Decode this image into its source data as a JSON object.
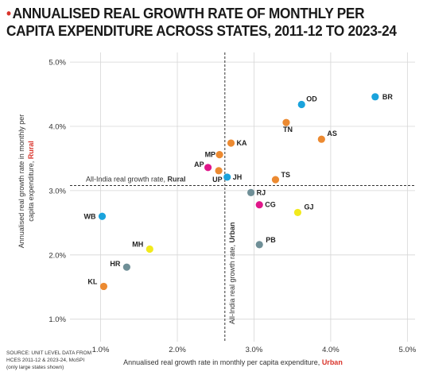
{
  "header": {
    "bullet": "•",
    "title_line1": "ANNUALISED REAL GROWTH RATE OF MONTHLY PER",
    "title_line2": "CAPITA EXPENDITURE ACROSS STATES, 2011-12 TO 2023-24"
  },
  "source": {
    "line1": "SOURCE: UNIT LEVEL DATA FROM",
    "line2": "HCES 2011-12 & 2023-24, MoSPI",
    "line3": "(only large states shown)"
  },
  "chart_data": {
    "type": "scatter",
    "title": "ANNUALISED REAL GROWTH RATE OF MONTHLY PER CAPITA EXPENDITURE ACROSS STATES, 2011-12 TO 2023-24",
    "xlabel": "Annualised real  growth rate in monthly per capita expenditure, Urban",
    "xlabel_main": "Annualised real  growth rate in monthly per capita expenditure, ",
    "xlabel_emph": "Urban",
    "ylabel_line1": "Annualised real growth rate in monthly per",
    "ylabel_line2_main": "capita expenditure, ",
    "ylabel_line2_emph": "Rural",
    "xlim": [
      0.6,
      5.1
    ],
    "ylim": [
      0.65,
      5.15
    ],
    "x_ticks": [
      1.0,
      2.0,
      3.0,
      4.0,
      5.0
    ],
    "x_tick_labels": [
      "1.0%",
      "2.0%",
      "3.0%",
      "4.0%",
      "5.0%"
    ],
    "y_ticks": [
      1.0,
      2.0,
      3.0,
      4.0,
      5.0
    ],
    "y_tick_labels": [
      "1.0%",
      "2.0%",
      "3.0%",
      "4.0%",
      "5.0%"
    ],
    "grid": true,
    "reference_lines": {
      "rural": {
        "value": 3.08,
        "label_main": "All-India real growth rate, ",
        "label_emph": "Rural"
      },
      "urban": {
        "value": 2.62,
        "label_main": "All-India real growth rate, ",
        "label_emph": "Urban"
      }
    },
    "points": [
      {
        "label": "BR",
        "x": 4.58,
        "y": 4.46,
        "color": "#1aa3dc"
      },
      {
        "label": "OD",
        "x": 3.62,
        "y": 4.34,
        "color": "#1aa3dc"
      },
      {
        "label": "TN",
        "x": 3.42,
        "y": 4.06,
        "color": "#ec8a31"
      },
      {
        "label": "AS",
        "x": 3.88,
        "y": 3.8,
        "color": "#ec8a31"
      },
      {
        "label": "KA",
        "x": 2.7,
        "y": 3.74,
        "color": "#ec8a31"
      },
      {
        "label": "MP",
        "x": 2.55,
        "y": 3.56,
        "color": "#ec8a31"
      },
      {
        "label": "AP",
        "x": 2.4,
        "y": 3.36,
        "color": "#e0178a"
      },
      {
        "label": "UP",
        "x": 2.54,
        "y": 3.31,
        "color": "#ec8a31"
      },
      {
        "label": "JH",
        "x": 2.65,
        "y": 3.21,
        "color": "#1aa3dc"
      },
      {
        "label": "TS",
        "x": 3.28,
        "y": 3.17,
        "color": "#ec8a31"
      },
      {
        "label": "RJ",
        "x": 2.96,
        "y": 2.97,
        "color": "#6f8f97"
      },
      {
        "label": "CG",
        "x": 3.07,
        "y": 2.78,
        "color": "#e0178a"
      },
      {
        "label": "GJ",
        "x": 3.57,
        "y": 2.66,
        "color": "#f2ea1c"
      },
      {
        "label": "WB",
        "x": 1.02,
        "y": 2.6,
        "color": "#1aa3dc"
      },
      {
        "label": "PB",
        "x": 3.07,
        "y": 2.16,
        "color": "#6f8f97"
      },
      {
        "label": "MH",
        "x": 1.64,
        "y": 2.09,
        "color": "#f2ea1c"
      },
      {
        "label": "HR",
        "x": 1.34,
        "y": 1.81,
        "color": "#6f8f97"
      },
      {
        "label": "KL",
        "x": 1.04,
        "y": 1.51,
        "color": "#ec8a31"
      }
    ],
    "colors": {
      "emphasis": "#d9342b",
      "grid": "#d6d6d6",
      "reference": "#333333"
    }
  }
}
